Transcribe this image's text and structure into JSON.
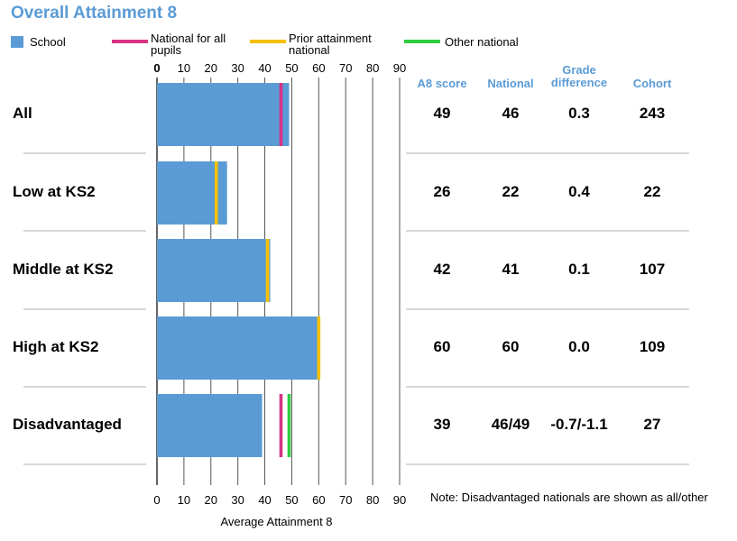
{
  "title": "Overall Attainment 8",
  "legend": [
    {
      "label": "School",
      "color": "#5b9bd5",
      "kind": "box"
    },
    {
      "label": "National for all pupils",
      "color": "#d63384",
      "kind": "line"
    },
    {
      "label": "Prior attainment national",
      "color": "#f5c000",
      "kind": "line"
    },
    {
      "label": "Other national",
      "color": "#2ecc40",
      "kind": "line"
    }
  ],
  "table": {
    "headers": [
      "A8 score",
      "National",
      "Grade difference",
      "Cohort"
    ],
    "rows": [
      [
        "49",
        "46",
        "0.3",
        "243"
      ],
      [
        "26",
        "22",
        "0.4",
        "22"
      ],
      [
        "42",
        "41",
        "0.1",
        "107"
      ],
      [
        "60",
        "60",
        "0.0",
        "109"
      ],
      [
        "39",
        "46/49",
        "-0.7/-1.1",
        "27"
      ]
    ]
  },
  "note": "Note: Disadvantaged nationals are shown as all/other",
  "chart_data": {
    "type": "bar",
    "orientation": "horizontal",
    "categories": [
      "All",
      "Low at KS2",
      "Middle at KS2",
      "High at KS2",
      "Disadvantaged"
    ],
    "series": [
      {
        "name": "School",
        "values": [
          49,
          26,
          42,
          60,
          39
        ]
      }
    ],
    "markers": [
      {
        "name": "National for all pupils",
        "values": [
          46,
          null,
          null,
          null,
          46
        ]
      },
      {
        "name": "Prior attainment national",
        "values": [
          null,
          22,
          41,
          60,
          null
        ]
      },
      {
        "name": "Other national",
        "values": [
          null,
          null,
          null,
          null,
          49
        ]
      }
    ],
    "xlabel": "Average Attainment 8",
    "xlim": [
      0,
      90
    ],
    "xticks": [
      0,
      10,
      20,
      30,
      40,
      50,
      60,
      70,
      80,
      90
    ],
    "grid": true,
    "legend_position": "top"
  }
}
